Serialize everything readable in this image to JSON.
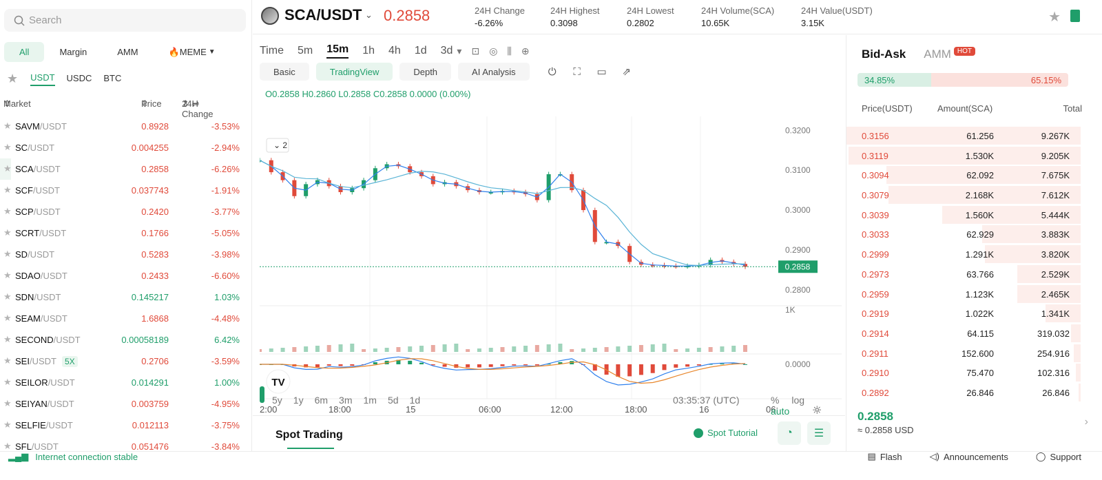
{
  "search": {
    "placeholder": "Search"
  },
  "category_tabs": [
    "All",
    "Margin",
    "AMM",
    "🔥MEME"
  ],
  "quote_tabs": [
    "USDT",
    "USDC",
    "BTC"
  ],
  "market_header": {
    "market": "Market",
    "price": "Price",
    "change": "24H Change"
  },
  "markets": [
    {
      "base": "SAVM",
      "quote": "/USDT",
      "price": "0.8928",
      "change": "-3.53%",
      "dir": "down"
    },
    {
      "base": "SC",
      "quote": "/USDT",
      "price": "0.004255",
      "change": "-2.94%",
      "dir": "down"
    },
    {
      "base": "SCA",
      "quote": "/USDT",
      "price": "0.2858",
      "change": "-6.26%",
      "dir": "down"
    },
    {
      "base": "SCF",
      "quote": "/USDT",
      "price": "0.037743",
      "change": "-1.91%",
      "dir": "down"
    },
    {
      "base": "SCP",
      "quote": "/USDT",
      "price": "0.2420",
      "change": "-3.77%",
      "dir": "down"
    },
    {
      "base": "SCRT",
      "quote": "/USDT",
      "price": "0.1766",
      "change": "-5.05%",
      "dir": "down"
    },
    {
      "base": "SD",
      "quote": "/USDT",
      "price": "0.5283",
      "change": "-3.98%",
      "dir": "down"
    },
    {
      "base": "SDAO",
      "quote": "/USDT",
      "price": "0.2433",
      "change": "-6.60%",
      "dir": "down"
    },
    {
      "base": "SDN",
      "quote": "/USDT",
      "price": "0.145217",
      "change": "1.03%",
      "dir": "up"
    },
    {
      "base": "SEAM",
      "quote": "/USDT",
      "price": "1.6868",
      "change": "-4.48%",
      "dir": "down"
    },
    {
      "base": "SECOND",
      "quote": "/USDT",
      "price": "0.00058189",
      "change": "6.42%",
      "dir": "up"
    },
    {
      "base": "SEI",
      "quote": "/USDT",
      "badge": "5X",
      "price": "0.2706",
      "change": "-3.59%",
      "dir": "down"
    },
    {
      "base": "SEILOR",
      "quote": "/USDT",
      "price": "0.014291",
      "change": "1.00%",
      "dir": "up"
    },
    {
      "base": "SEIYAN",
      "quote": "/USDT",
      "price": "0.003759",
      "change": "-4.95%",
      "dir": "down"
    },
    {
      "base": "SELFIE",
      "quote": "/USDT",
      "price": "0.012113",
      "change": "-3.75%",
      "dir": "down"
    },
    {
      "base": "SFL",
      "quote": "/USDT",
      "price": "0.051476",
      "change": "-3.84%",
      "dir": "down"
    }
  ],
  "header": {
    "pair": "SCA/USDT",
    "last_price": "0.2858",
    "stats": [
      {
        "label": "24H Change",
        "value": "-6.26%"
      },
      {
        "label": "24H Highest",
        "value": "0.3098"
      },
      {
        "label": "24H Lowest",
        "value": "0.2802"
      },
      {
        "label": "24H Volume(SCA)",
        "value": "10.65K"
      },
      {
        "label": "24H Value(USDT)",
        "value": "3.15K"
      }
    ]
  },
  "timeframes": [
    "Time",
    "5m",
    "15m",
    "1h",
    "4h",
    "1d",
    "3d"
  ],
  "view_tabs": [
    "Basic",
    "TradingView",
    "Depth",
    "AI Analysis"
  ],
  "ohlc": "O0.2858  H0.2860  L0.2858  C0.2858  0.0000 (0.00%)",
  "indicator_toggle": "2",
  "chart_data": {
    "type": "line",
    "title": "",
    "price_axis": [
      "0.3200",
      "0.3100",
      "0.3000",
      "0.2900",
      "0.2800"
    ],
    "current_price_tag": "0.2858",
    "volume_axis": "1K",
    "macd_axis": "0.0000",
    "x_ticks": [
      "2:00",
      "18:00",
      "15",
      "06:00",
      "12:00",
      "18:00",
      "16",
      "06:"
    ],
    "ylim": [
      0.276,
      0.3235
    ],
    "series": [
      {
        "values": [
          0.3125,
          0.3095,
          0.3075,
          0.3035,
          0.3065,
          0.3075,
          0.306,
          0.3045,
          0.3055,
          0.3075,
          0.3105,
          0.3115,
          0.311,
          0.3095,
          0.3085,
          0.3065,
          0.307,
          0.306,
          0.305,
          0.3045,
          0.3045,
          0.3048,
          0.3045,
          0.304,
          0.3025,
          0.309,
          0.309,
          0.305,
          0.3,
          0.292,
          0.292,
          0.291,
          0.287,
          0.2863,
          0.2862,
          0.286,
          0.2859,
          0.286,
          0.2862,
          0.2875,
          0.287,
          0.2865,
          0.2858
        ]
      }
    ]
  },
  "range_buttons": [
    "5y",
    "1y",
    "6m",
    "3m",
    "1m",
    "5d",
    "1d"
  ],
  "utc_time": "03:35:37 (UTC)",
  "scale_opts": [
    "%",
    "log",
    "auto"
  ],
  "spot": {
    "title": "Spot Trading",
    "tutorial": "Spot Tutorial"
  },
  "orderbook": {
    "tabs": [
      "Bid-Ask",
      "AMM"
    ],
    "hot": "HOT",
    "buy_ratio": "34.85%",
    "sell_ratio": "65.15%",
    "buy_fraction": 0.3485,
    "head": {
      "price": "Price(USDT)",
      "amount": "Amount(SCA)",
      "total": "Total"
    },
    "asks": [
      {
        "price": "0.3156",
        "amount": "61.256",
        "total": "9.267K",
        "depth": 1.0
      },
      {
        "price": "0.3119",
        "amount": "1.530K",
        "total": "9.205K",
        "depth": 0.99
      },
      {
        "price": "0.3094",
        "amount": "62.092",
        "total": "7.675K",
        "depth": 0.83
      },
      {
        "price": "0.3079",
        "amount": "2.168K",
        "total": "7.612K",
        "depth": 0.82
      },
      {
        "price": "0.3039",
        "amount": "1.560K",
        "total": "5.444K",
        "depth": 0.59
      },
      {
        "price": "0.3033",
        "amount": "62.929",
        "total": "3.883K",
        "depth": 0.42
      },
      {
        "price": "0.2999",
        "amount": "1.291K",
        "total": "3.820K",
        "depth": 0.41
      },
      {
        "price": "0.2973",
        "amount": "63.766",
        "total": "2.529K",
        "depth": 0.27
      },
      {
        "price": "0.2959",
        "amount": "1.123K",
        "total": "2.465K",
        "depth": 0.27
      },
      {
        "price": "0.2919",
        "amount": "1.022K",
        "total": "1.341K",
        "depth": 0.15
      },
      {
        "price": "0.2914",
        "amount": "64.115",
        "total": "319.032",
        "depth": 0.04
      },
      {
        "price": "0.2911",
        "amount": "152.600",
        "total": "254.916",
        "depth": 0.03
      },
      {
        "price": "0.2910",
        "amount": "75.470",
        "total": "102.316",
        "depth": 0.02
      },
      {
        "price": "0.2892",
        "amount": "26.846",
        "total": "26.846",
        "depth": 0.01
      }
    ],
    "last_price": "0.2858",
    "last_usd": "≈ 0.2858 USD"
  },
  "footer": {
    "connection": "Internet connection stable",
    "links": [
      "Flash",
      "Announcements",
      "Support"
    ]
  },
  "colors": {
    "up": "#1f9e6a",
    "down": "#e04a3a",
    "accent": "#1f9e6a"
  }
}
